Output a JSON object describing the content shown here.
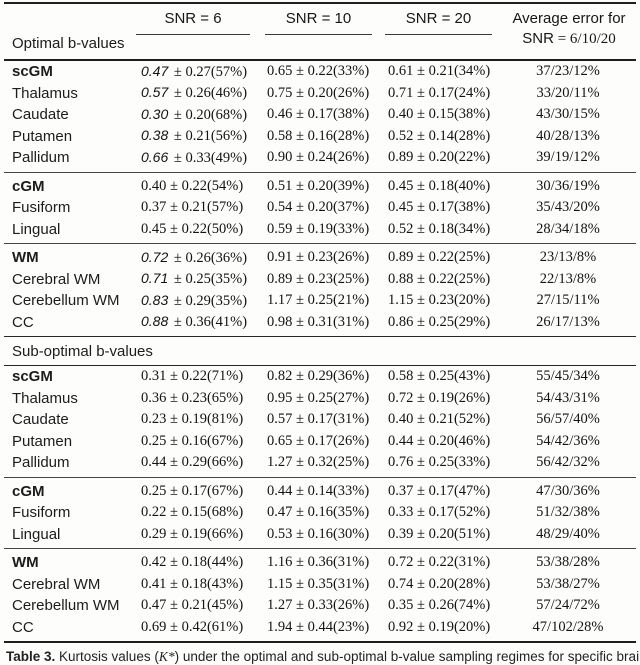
{
  "header": {
    "columns": [
      "SNR = 6",
      "SNR = 10",
      "SNR = 20"
    ],
    "avg_line1": "Average error for",
    "avg_line2_prefix": "SNR",
    "avg_line2_rest": " = 6/10/20"
  },
  "sections": [
    {
      "title": "Optimal b-values",
      "groups": [
        {
          "rows": [
            {
              "label": "scGM",
              "bold": true,
              "em": true,
              "s6_lead": "0.47",
              "s6_rest": "± 0.27(57%)",
              "s10": "0.65 ± 0.22(33%)",
              "s20": "0.61 ± 0.21(34%)",
              "avg": "37/23/12%"
            },
            {
              "label": "Thalamus",
              "bold": false,
              "em": true,
              "s6_lead": "0.57",
              "s6_rest": "± 0.26(46%)",
              "s10": "0.75 ± 0.20(26%)",
              "s20": "0.71 ± 0.17(24%)",
              "avg": "33/20/11%"
            },
            {
              "label": "Caudate",
              "bold": false,
              "em": true,
              "s6_lead": "0.30",
              "s6_rest": "± 0.20(68%)",
              "s10": "0.46 ± 0.17(38%)",
              "s20": "0.40 ± 0.15(38%)",
              "avg": "43/30/15%"
            },
            {
              "label": "Putamen",
              "bold": false,
              "em": true,
              "s6_lead": "0.38",
              "s6_rest": "± 0.21(56%)",
              "s10": "0.58 ± 0.16(28%)",
              "s20": "0.52 ± 0.14(28%)",
              "avg": "40/28/13%"
            },
            {
              "label": "Pallidum",
              "bold": false,
              "em": true,
              "s6_lead": "0.66",
              "s6_rest": "± 0.33(49%)",
              "s10": "0.90 ± 0.24(26%)",
              "s20": "0.89 ± 0.20(22%)",
              "avg": "39/19/12%"
            }
          ]
        },
        {
          "rows": [
            {
              "label": "cGM",
              "bold": true,
              "em": false,
              "s6_lead": "0.40",
              "s6_rest": "± 0.22(54%)",
              "s10": "0.51 ± 0.20(39%)",
              "s20": "0.45 ± 0.18(40%)",
              "avg": "30/36/19%"
            },
            {
              "label": "Fusiform",
              "bold": false,
              "em": false,
              "s6_lead": "0.37",
              "s6_rest": "± 0.21(57%)",
              "s10": "0.54 ± 0.20(37%)",
              "s20": "0.45 ± 0.17(38%)",
              "avg": "35/43/20%"
            },
            {
              "label": "Lingual",
              "bold": false,
              "em": false,
              "s6_lead": "0.45",
              "s6_rest": "± 0.22(50%)",
              "s10": "0.59 ± 0.19(33%)",
              "s20": "0.52 ± 0.18(34%)",
              "avg": "28/34/18%"
            }
          ]
        },
        {
          "rows": [
            {
              "label": "WM",
              "bold": true,
              "em": true,
              "s6_lead": "0.72",
              "s6_rest": "± 0.26(36%)",
              "s10": "0.91 ± 0.23(26%)",
              "s20": "0.89 ± 0.22(25%)",
              "avg": "23/13/8%"
            },
            {
              "label": "Cerebral WM",
              "bold": false,
              "em": true,
              "s6_lead": "0.71",
              "s6_rest": "± 0.25(35%)",
              "s10": "0.89 ± 0.23(25%)",
              "s20": "0.88 ± 0.22(25%)",
              "avg": "22/13/8%"
            },
            {
              "label": "Cerebellum WM",
              "bold": false,
              "em": true,
              "s6_lead": "0.83",
              "s6_rest": "± 0.29(35%)",
              "s10": "1.17 ± 0.25(21%)",
              "s20": "1.15 ± 0.23(20%)",
              "avg": "27/15/11%"
            },
            {
              "label": "CC",
              "bold": false,
              "em": true,
              "s6_lead": "0.88",
              "s6_rest": "± 0.36(41%)",
              "s10": "0.98 ± 0.31(31%)",
              "s20": "0.86 ± 0.25(29%)",
              "avg": "26/17/13%"
            }
          ]
        }
      ]
    },
    {
      "title": "Sub-optimal b-values",
      "groups": [
        {
          "rows": [
            {
              "label": "scGM",
              "bold": true,
              "em": false,
              "s6_lead": "0.31",
              "s6_rest": "± 0.22(71%)",
              "s10": "0.82 ± 0.29(36%)",
              "s20": "0.58 ± 0.25(43%)",
              "avg": "55/45/34%"
            },
            {
              "label": "Thalamus",
              "bold": false,
              "em": false,
              "s6_lead": "0.36",
              "s6_rest": "± 0.23(65%)",
              "s10": "0.95 ± 0.25(27%)",
              "s20": "0.72 ± 0.19(26%)",
              "avg": "54/43/31%"
            },
            {
              "label": "Caudate",
              "bold": false,
              "em": false,
              "s6_lead": "0.23",
              "s6_rest": "± 0.19(81%)",
              "s10": "0.57 ± 0.17(31%)",
              "s20": "0.40 ± 0.21(52%)",
              "avg": "56/57/40%"
            },
            {
              "label": "Putamen",
              "bold": false,
              "em": false,
              "s6_lead": "0.25",
              "s6_rest": "± 0.16(67%)",
              "s10": "0.65 ± 0.17(26%)",
              "s20": "0.44 ± 0.20(46%)",
              "avg": "54/42/36%"
            },
            {
              "label": "Pallidum",
              "bold": false,
              "em": false,
              "s6_lead": "0.44",
              "s6_rest": "± 0.29(66%)",
              "s10": "1.27 ± 0.32(25%)",
              "s20": "0.76 ± 0.25(33%)",
              "avg": "56/42/32%"
            }
          ]
        },
        {
          "rows": [
            {
              "label": "cGM",
              "bold": true,
              "em": false,
              "s6_lead": "0.25",
              "s6_rest": "± 0.17(67%)",
              "s10": "0.44 ± 0.14(33%)",
              "s20": "0.37 ± 0.17(47%)",
              "avg": "47/30/36%"
            },
            {
              "label": "Fusiform",
              "bold": false,
              "em": false,
              "s6_lead": "0.22",
              "s6_rest": "± 0.15(68%)",
              "s10": "0.47 ± 0.16(35%)",
              "s20": "0.33 ± 0.17(52%)",
              "avg": "51/32/38%"
            },
            {
              "label": "Lingual",
              "bold": false,
              "em": false,
              "s6_lead": "0.29",
              "s6_rest": "± 0.19(66%)",
              "s10": "0.53 ± 0.16(30%)",
              "s20": "0.39 ± 0.20(51%)",
              "avg": "48/29/40%"
            }
          ]
        },
        {
          "rows": [
            {
              "label": "WM",
              "bold": true,
              "em": false,
              "s6_lead": "0.42",
              "s6_rest": "± 0.18(44%)",
              "s10": "1.16 ± 0.36(31%)",
              "s20": "0.72 ± 0.22(31%)",
              "avg": "53/38/28%"
            },
            {
              "label": "Cerebral WM",
              "bold": false,
              "em": false,
              "s6_lead": "0.41",
              "s6_rest": "± 0.18(43%)",
              "s10": "1.15 ± 0.35(31%)",
              "s20": "0.74 ± 0.20(28%)",
              "avg": "53/38/27%"
            },
            {
              "label": "Cerebellum WM",
              "bold": false,
              "em": false,
              "s6_lead": "0.47",
              "s6_rest": "± 0.21(45%)",
              "s10": "1.27 ± 0.33(26%)",
              "s20": "0.35 ± 0.26(74%)",
              "avg": "57/24/72%"
            },
            {
              "label": "CC",
              "bold": false,
              "em": false,
              "s6_lead": "0.69",
              "s6_rest": "± 0.42(61%)",
              "s10": "1.94 ± 0.44(23%)",
              "s20": "0.92 ± 0.19(20%)",
              "avg": "47/102/28%"
            }
          ]
        }
      ]
    }
  ],
  "caption": {
    "label": "Table 3.",
    "before": " Kurtosis values (",
    "symbol": "K*",
    "after": ") under the optimal and sub-optimal b-value sampling regimes for specific brain"
  }
}
